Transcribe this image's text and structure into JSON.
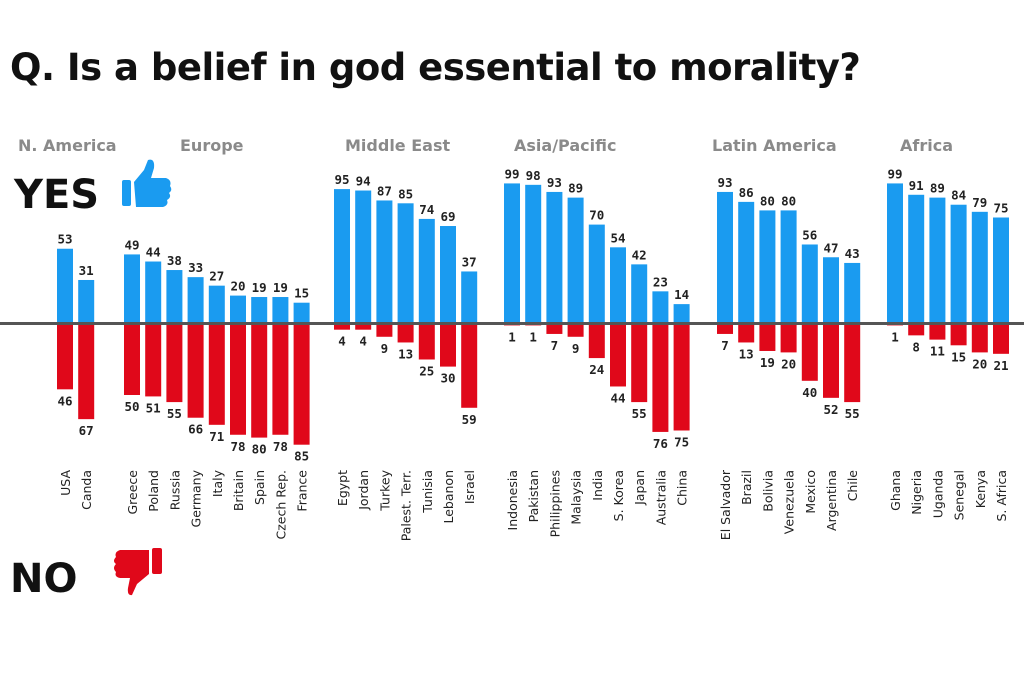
{
  "chart_data": {
    "type": "bar",
    "title": "Q. Is a belief in god essential to morality?",
    "legend": {
      "yes_label": "YES",
      "no_label": "NO",
      "yes_icon": "thumbs-up-icon",
      "no_icon": "thumbs-down-icon"
    },
    "colors": {
      "yes": "#1a9bf0",
      "no": "#e0081a",
      "axis": "#555555"
    },
    "ylim": [
      -85,
      99
    ],
    "groups": [
      {
        "region": "N. America",
        "countries": [
          "USA",
          "Canda"
        ],
        "yes": [
          53,
          31
        ],
        "no": [
          46,
          67
        ]
      },
      {
        "region": "Europe",
        "countries": [
          "Greece",
          "Poland",
          "Russia",
          "Germany",
          "Italy",
          "Britain",
          "Spain",
          "Czech Rep.",
          "France"
        ],
        "yes": [
          49,
          44,
          38,
          33,
          27,
          20,
          19,
          19,
          15
        ],
        "no": [
          50,
          51,
          55,
          66,
          71,
          78,
          80,
          78,
          85
        ]
      },
      {
        "region": "Middle East",
        "countries": [
          "Egypt",
          "Jordan",
          "Turkey",
          "Palest. Terr.",
          "Tunisia",
          "Lebanon",
          "Israel"
        ],
        "yes": [
          95,
          94,
          87,
          85,
          74,
          69,
          37
        ],
        "no": [
          4,
          4,
          9,
          13,
          25,
          30,
          59
        ]
      },
      {
        "region": "Asia/Pacific",
        "countries": [
          "Indonesia",
          "Pakistan",
          "Philippines",
          "Malaysia",
          "India",
          "S. Korea",
          "Japan",
          "Australia",
          "China"
        ],
        "yes": [
          99,
          98,
          93,
          89,
          70,
          54,
          42,
          23,
          14
        ],
        "no": [
          1,
          1,
          7,
          9,
          24,
          44,
          55,
          76,
          75
        ]
      },
      {
        "region": "Latin America",
        "countries": [
          "El Salvador",
          "Brazil",
          "Bolivia",
          "Venezuela",
          "Mexico",
          "Argentina",
          "Chile"
        ],
        "yes": [
          93,
          86,
          80,
          80,
          56,
          47,
          43
        ],
        "no": [
          7,
          13,
          19,
          20,
          40,
          52,
          55
        ]
      },
      {
        "region": "Africa",
        "countries": [
          "Ghana",
          "Nigeria",
          "Uganda",
          "Senegal",
          "Kenya",
          "S. Africa"
        ],
        "yes": [
          99,
          91,
          89,
          84,
          79,
          75
        ],
        "no": [
          1,
          8,
          11,
          15,
          20,
          21
        ]
      }
    ]
  }
}
